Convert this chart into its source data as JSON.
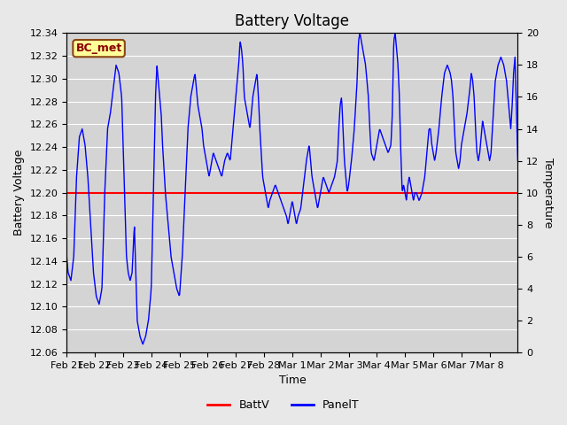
{
  "title": "Battery Voltage",
  "xlabel": "Time",
  "ylabel_left": "Battery Voltage",
  "ylabel_right": "Temperature",
  "ylim_left": [
    12.06,
    12.34
  ],
  "ylim_right": [
    0,
    20
  ],
  "yticks_left": [
    12.06,
    12.08,
    12.1,
    12.12,
    12.14,
    12.16,
    12.18,
    12.2,
    12.22,
    12.24,
    12.26,
    12.28,
    12.3,
    12.32,
    12.34
  ],
  "yticks_right": [
    0,
    2,
    4,
    6,
    8,
    10,
    12,
    14,
    16,
    18,
    20
  ],
  "batt_v": 12.2,
  "batt_color": "#ff0000",
  "panel_color": "#0000ff",
  "background_color": "#e8e8e8",
  "plot_bg_color": "#d4d4d4",
  "grid_color": "#ffffff",
  "station_label": "BC_met",
  "station_label_color": "#8b0000",
  "station_label_bg": "#ffff99",
  "station_label_border": "#8b4513",
  "x_tick_labels": [
    "Feb 21",
    "Feb 22",
    "Feb 23",
    "Feb 24",
    "Feb 25",
    "Feb 26",
    "Feb 27",
    "Feb 28",
    "Mar 1",
    "Mar 2",
    "Mar 3",
    "Mar 4",
    "Mar 5",
    "Mar 6",
    "Mar 7",
    "Mar 8"
  ],
  "title_fontsize": 12,
  "axis_fontsize": 9,
  "tick_fontsize": 8,
  "legend_fontsize": 9,
  "panel_keypoints_day": [
    0.0,
    0.05,
    0.15,
    0.25,
    0.35,
    0.45,
    0.55,
    0.65,
    0.75,
    0.85,
    0.95,
    1.05,
    1.15,
    1.25,
    1.35,
    1.45,
    1.55,
    1.65,
    1.75,
    1.85,
    1.95,
    2.05,
    2.12,
    2.18,
    2.25,
    2.32,
    2.4,
    2.5,
    2.6,
    2.7,
    2.8,
    2.9,
    3.0,
    3.05,
    3.1,
    3.15,
    3.2,
    3.25,
    3.3,
    3.35,
    3.4,
    3.45,
    3.5,
    3.6,
    3.7,
    3.8,
    3.9,
    4.0,
    4.1,
    4.2,
    4.3,
    4.4,
    4.5,
    4.55,
    4.6,
    4.65,
    4.7,
    4.75,
    4.8,
    4.85,
    4.9,
    4.95,
    5.0,
    5.05,
    5.1,
    5.15,
    5.2,
    5.3,
    5.4,
    5.5,
    5.6,
    5.7,
    5.8,
    5.9,
    6.0,
    6.05,
    6.1,
    6.15,
    6.2,
    6.25,
    6.3,
    6.4,
    6.5,
    6.6,
    6.7,
    6.75,
    6.8,
    6.85,
    6.9,
    6.95,
    7.0,
    7.05,
    7.1,
    7.15,
    7.2,
    7.3,
    7.4,
    7.5,
    7.6,
    7.7,
    7.8,
    7.85,
    7.9,
    7.95,
    8.0,
    8.05,
    8.1,
    8.15,
    8.2,
    8.3,
    8.4,
    8.5,
    8.6,
    8.7,
    8.8,
    8.9,
    9.0,
    9.1,
    9.2,
    9.3,
    9.4,
    9.5,
    9.6,
    9.65,
    9.7,
    9.75,
    9.8,
    9.85,
    9.9,
    9.95,
    10.0,
    10.1,
    10.2,
    10.3,
    10.35,
    10.4,
    10.45,
    10.5,
    10.55,
    10.6,
    10.65,
    10.7,
    10.75,
    10.8,
    10.9,
    11.0,
    11.1,
    11.2,
    11.3,
    11.4,
    11.5,
    11.55,
    11.6,
    11.65,
    11.7,
    11.75,
    11.8,
    11.85,
    11.9,
    11.95,
    12.0,
    12.05,
    12.1,
    12.15,
    12.2,
    12.25,
    12.3,
    12.35,
    12.4,
    12.5,
    12.6,
    12.7,
    12.75,
    12.8,
    12.85,
    12.9,
    12.95,
    13.0,
    13.05,
    13.1,
    13.2,
    13.3,
    13.4,
    13.5,
    13.6,
    13.65,
    13.7,
    13.75,
    13.8,
    13.85,
    13.9,
    13.95,
    14.0,
    14.1,
    14.2,
    14.3,
    14.35,
    14.4,
    14.45,
    14.5,
    14.55,
    14.6,
    14.65,
    14.7,
    14.75,
    14.8,
    14.85,
    14.9,
    14.95,
    15.0,
    15.05,
    15.1,
    15.15,
    15.2,
    15.3,
    15.4,
    15.5,
    15.6,
    15.7,
    15.75,
    15.8,
    15.85,
    15.9,
    16.0
  ],
  "panel_keypoints_val": [
    6.0,
    5.0,
    4.5,
    6.0,
    11.0,
    13.5,
    14.0,
    13.0,
    11.0,
    8.0,
    5.0,
    3.5,
    3.0,
    4.0,
    10.0,
    14.0,
    15.0,
    16.5,
    18.0,
    17.5,
    16.0,
    10.0,
    6.0,
    5.0,
    4.5,
    5.0,
    8.0,
    2.0,
    1.0,
    0.5,
    1.0,
    2.0,
    4.0,
    8.0,
    12.0,
    16.0,
    18.0,
    17.0,
    16.0,
    15.0,
    13.0,
    11.5,
    10.0,
    8.0,
    6.0,
    5.0,
    4.0,
    3.5,
    6.0,
    10.0,
    14.0,
    16.0,
    17.0,
    17.5,
    16.5,
    15.5,
    15.0,
    14.5,
    14.0,
    13.0,
    12.5,
    12.0,
    11.5,
    11.0,
    11.5,
    12.0,
    12.5,
    12.0,
    11.5,
    11.0,
    12.0,
    12.5,
    12.0,
    14.0,
    16.0,
    17.0,
    18.0,
    19.5,
    19.0,
    18.0,
    16.0,
    15.0,
    14.0,
    16.0,
    17.0,
    17.5,
    16.0,
    14.0,
    12.5,
    11.0,
    10.5,
    10.0,
    9.5,
    9.0,
    9.5,
    10.0,
    10.5,
    10.0,
    9.5,
    9.0,
    8.5,
    8.0,
    8.5,
    9.0,
    9.5,
    9.0,
    8.5,
    8.0,
    8.5,
    9.0,
    10.5,
    12.0,
    13.0,
    11.0,
    10.0,
    9.0,
    10.0,
    11.0,
    10.5,
    10.0,
    10.5,
    11.0,
    12.0,
    14.0,
    15.5,
    16.0,
    14.0,
    12.0,
    11.0,
    10.0,
    10.5,
    12.0,
    14.0,
    17.0,
    19.5,
    20.0,
    19.5,
    19.0,
    18.5,
    18.0,
    17.0,
    16.0,
    14.0,
    12.5,
    12.0,
    13.0,
    14.0,
    13.5,
    13.0,
    12.5,
    13.0,
    15.0,
    19.5,
    20.0,
    19.0,
    18.0,
    16.0,
    12.5,
    10.0,
    10.5,
    10.0,
    9.5,
    10.5,
    11.0,
    10.5,
    10.0,
    9.5,
    10.0,
    10.0,
    9.5,
    10.0,
    11.0,
    12.0,
    13.0,
    14.0,
    14.0,
    13.0,
    12.5,
    12.0,
    12.5,
    14.0,
    16.0,
    17.5,
    18.0,
    17.5,
    17.0,
    16.0,
    14.0,
    12.5,
    12.0,
    11.5,
    12.0,
    13.0,
    14.0,
    15.0,
    16.5,
    17.5,
    17.0,
    16.0,
    14.0,
    12.5,
    12.0,
    12.5,
    13.5,
    14.5,
    14.0,
    13.5,
    13.0,
    12.5,
    12.0,
    12.5,
    14.0,
    15.5,
    17.0,
    18.0,
    18.5,
    18.0,
    17.0,
    15.0,
    14.0,
    15.5,
    17.5,
    18.5,
    12.0
  ]
}
